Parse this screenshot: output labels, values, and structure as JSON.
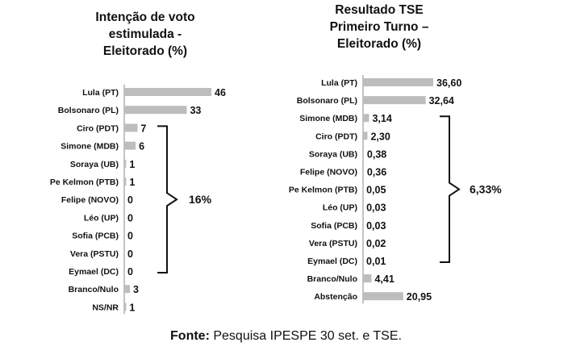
{
  "chart_data": [
    {
      "type": "bar",
      "orientation": "horizontal",
      "title": [
        "Intenção de voto",
        "estimulada -",
        "Eleitorado (%)"
      ],
      "categories": [
        "Lula (PT)",
        "Bolsonaro (PL)",
        "Ciro (PDT)",
        "Simone (MDB)",
        "Soraya (UB)",
        "Pe Kelmon (PTB)",
        "Felipe (NOVO)",
        "Léo (UP)",
        "Sofia (PCB)",
        "Vera (PSTU)",
        "Eymael (DC)",
        "Branco/Nulo",
        "NS/NR"
      ],
      "values": [
        46,
        33,
        7,
        6,
        1,
        1,
        0,
        0,
        0,
        0,
        0,
        3,
        1
      ],
      "value_labels": [
        "46",
        "33",
        "7",
        "6",
        "1",
        "1",
        "0",
        "0",
        "0",
        "0",
        "0",
        "3",
        "1"
      ],
      "bracket": {
        "from": "Ciro (PDT)",
        "to": "Eymael (DC)",
        "label": "16%"
      }
    },
    {
      "type": "bar",
      "orientation": "horizontal",
      "title": [
        "Resultado TSE",
        "Primeiro Turno –",
        "Eleitorado (%)"
      ],
      "categories": [
        "Lula (PT)",
        "Bolsonaro (PL)",
        "Simone (MDB)",
        "Ciro (PDT)",
        "Soraya (UB)",
        "Felipe (NOVO)",
        "Pe Kelmon (PTB)",
        "Léo (UP)",
        "Sofia (PCB)",
        "Vera (PSTU)",
        "Eymael (DC)",
        "Branco/Nulo",
        "Abstenção"
      ],
      "values": [
        36.6,
        32.64,
        3.14,
        2.3,
        0.38,
        0.36,
        0.05,
        0.03,
        0.03,
        0.02,
        0.01,
        4.41,
        20.95
      ],
      "value_labels": [
        "36,60",
        "32,64",
        "3,14",
        "2,30",
        "0,38",
        "0,36",
        "0,05",
        "0,03",
        "0,03",
        "0,02",
        "0,01",
        "4,41",
        "20,95"
      ],
      "bracket": {
        "from": "Simone (MDB)",
        "to": "Eymael (DC)",
        "label": "6,33%"
      }
    }
  ],
  "source": {
    "label": "Fonte:",
    "text": " Pesquisa IPESPE 30 set. e TSE."
  }
}
